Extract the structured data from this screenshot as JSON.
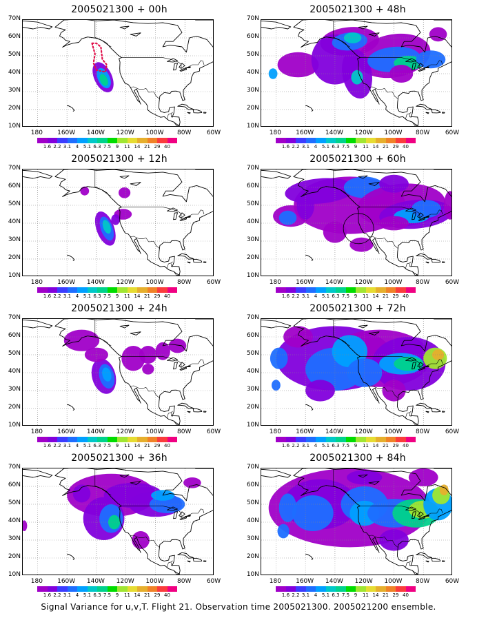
{
  "panels": [
    {
      "title": "2005021300 + 00h"
    },
    {
      "title": "2005021300 + 48h"
    },
    {
      "title": "2005021300 + 12h"
    },
    {
      "title": "2005021300 + 60h"
    },
    {
      "title": "2005021300 + 24h"
    },
    {
      "title": "2005021300 + 72h"
    },
    {
      "title": "2005021300 + 36h"
    },
    {
      "title": "2005021300 + 84h"
    }
  ],
  "lat_labels": [
    "70N",
    "60N",
    "50N",
    "40N",
    "30N",
    "20N",
    "10N"
  ],
  "lon_labels": [
    "180",
    "160W",
    "140W",
    "120W",
    "100W",
    "80W",
    "60W"
  ],
  "colorbar": {
    "labels": [
      "1.6",
      "2.2",
      "3.1",
      "4",
      "5.1",
      "6.3",
      "7.5",
      "9",
      "11",
      "14",
      "21",
      "29",
      "40"
    ],
    "colors": [
      "#a000c8",
      "#8200dc",
      "#3c3cff",
      "#1e6eff",
      "#00a0ff",
      "#00c8c8",
      "#00d28c",
      "#00dc00",
      "#a0e632",
      "#e6dc32",
      "#e6af2d",
      "#f08228",
      "#fa3c3c",
      "#f00082"
    ]
  },
  "footer": "Signal Variance for u,v,T. Flight 21. Observation time 2005021300. 2005021200 ensemble."
}
